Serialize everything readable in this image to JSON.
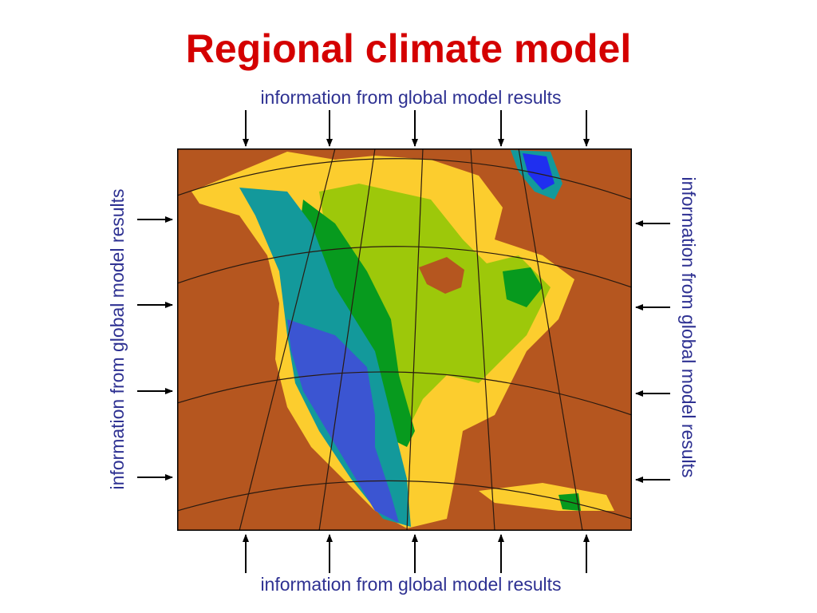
{
  "title": "Regional climate model",
  "labels": {
    "top": "information from global model results",
    "bottom": "information from global model results",
    "left": "information from global model results",
    "right": "information from global model results"
  }
}
